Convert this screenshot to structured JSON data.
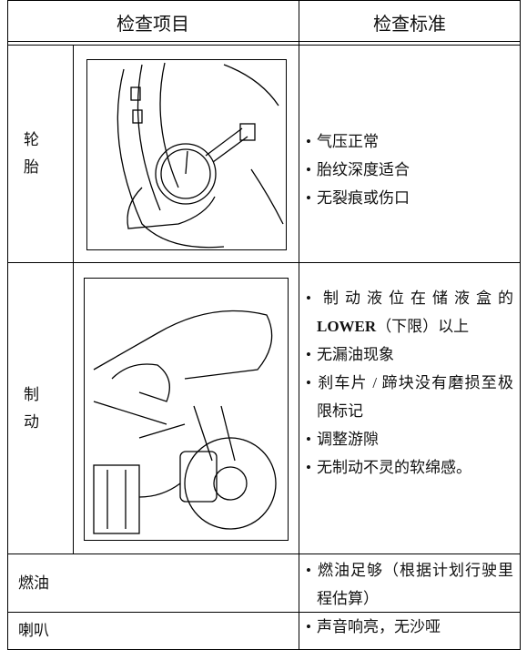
{
  "table": {
    "headers": [
      "检查项目",
      "检查标准"
    ],
    "rows": [
      {
        "item": "轮胎",
        "criteria": [
          "气压正常",
          "胎纹深度适合",
          "无裂痕或伤口"
        ]
      },
      {
        "item": "制动",
        "criteria": [
          {
            "before": "制动液位在储液盒的",
            "bold": "LOWER",
            "after": "（下限）以上"
          },
          "无漏油现象",
          "刹车片 / 蹄块没有磨损至极限标记",
          "调整游隙",
          "无制动不灵的软绵感。"
        ]
      },
      {
        "item": "燃油",
        "criteria": [
          "燃油足够（根据计划行驶里程估算）"
        ]
      },
      {
        "item": "喇叭",
        "criteria": [
          "声音响亮，无沙哑"
        ]
      }
    ]
  }
}
